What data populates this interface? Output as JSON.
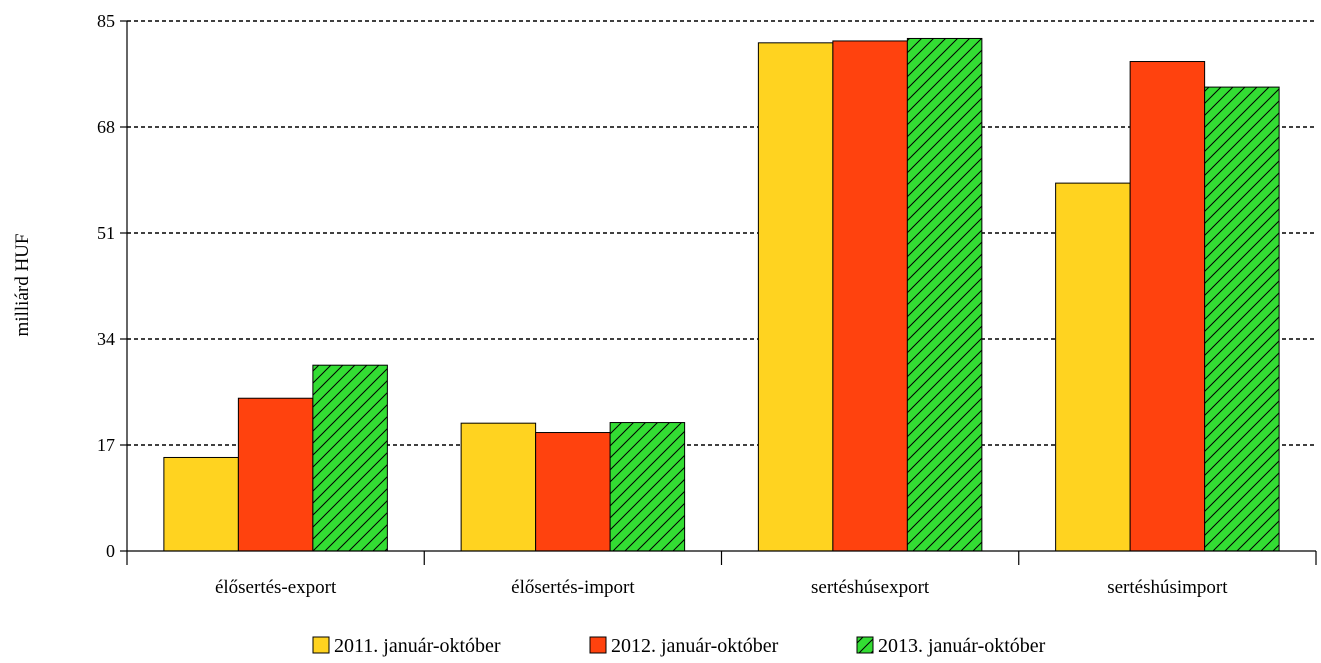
{
  "chart_data": {
    "type": "bar",
    "title": "",
    "xlabel": "",
    "ylabel": "milliárd HUF",
    "ylim": [
      0,
      85
    ],
    "yticks": [
      0,
      17,
      34,
      51,
      68,
      85
    ],
    "grid": true,
    "legend_position": "bottom",
    "categories": [
      "élősertés-export",
      "élősertés-import",
      "sertéshúsexport",
      "sertéshúsimport"
    ],
    "series": [
      {
        "name": "2011. január-október",
        "color": "#ffd320",
        "pattern": "solid",
        "values": [
          15,
          20.5,
          81.5,
          59
        ]
      },
      {
        "name": "2012. január-október",
        "color": "#ff420e",
        "pattern": "solid",
        "values": [
          24.5,
          19,
          81.8,
          78.5
        ]
      },
      {
        "name": "2013. január-október",
        "color": "#33dd33",
        "pattern": "hatched",
        "values": [
          29.8,
          20.6,
          82.2,
          74.4
        ]
      }
    ]
  }
}
